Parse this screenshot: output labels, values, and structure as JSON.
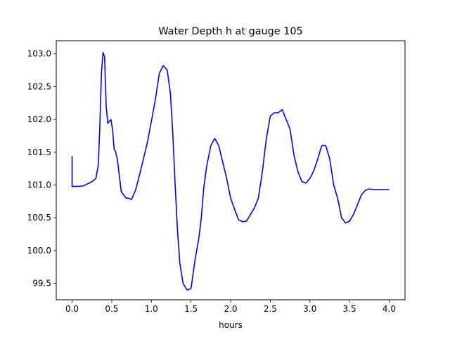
{
  "chart_data": {
    "type": "line",
    "title": "Water Depth h at gauge 105",
    "xlabel": "hours",
    "ylabel": "",
    "xlim": [
      -0.2,
      4.2
    ],
    "ylim": [
      99.25,
      103.2
    ],
    "xticks": [
      0.0,
      0.5,
      1.0,
      1.5,
      2.0,
      2.5,
      3.0,
      3.5,
      4.0
    ],
    "xtick_labels": [
      "0.0",
      "0.5",
      "1.0",
      "1.5",
      "2.0",
      "2.5",
      "3.0",
      "3.5",
      "4.0"
    ],
    "yticks": [
      99.5,
      100.0,
      100.5,
      101.0,
      101.5,
      102.0,
      102.5,
      103.0
    ],
    "ytick_labels": [
      "99.5",
      "100.0",
      "100.5",
      "101.0",
      "101.5",
      "102.0",
      "102.5",
      "103.0"
    ],
    "grid": false,
    "color": "#0000ff",
    "series": [
      {
        "x": [
          0.0,
          0.0,
          0.05,
          0.1,
          0.15,
          0.2,
          0.25,
          0.3,
          0.33,
          0.35,
          0.37,
          0.39,
          0.41,
          0.43,
          0.45,
          0.47,
          0.49,
          0.51,
          0.53,
          0.55,
          0.57,
          0.59,
          0.62,
          0.65,
          0.68,
          0.71,
          0.75,
          0.8,
          0.85,
          0.9,
          0.95,
          1.0,
          1.05,
          1.1,
          1.15,
          1.2,
          1.24,
          1.27,
          1.3,
          1.33,
          1.36,
          1.4,
          1.45,
          1.5,
          1.55,
          1.6,
          1.63,
          1.66,
          1.7,
          1.75,
          1.8,
          1.85,
          1.9,
          1.95,
          2.0,
          2.05,
          2.1,
          2.15,
          2.2,
          2.25,
          2.3,
          2.35,
          2.4,
          2.45,
          2.5,
          2.55,
          2.6,
          2.65,
          2.7,
          2.75,
          2.8,
          2.85,
          2.9,
          2.95,
          3.0,
          3.05,
          3.1,
          3.15,
          3.2,
          3.25,
          3.3,
          3.35,
          3.4,
          3.45,
          3.5,
          3.55,
          3.6,
          3.65,
          3.7,
          3.75,
          3.8,
          3.85,
          3.9,
          3.95,
          4.0
        ],
        "y": [
          101.44,
          100.98,
          100.98,
          100.98,
          100.99,
          101.02,
          101.05,
          101.1,
          101.3,
          101.9,
          102.7,
          103.02,
          102.95,
          102.2,
          101.94,
          101.97,
          102.0,
          101.85,
          101.55,
          101.5,
          101.4,
          101.2,
          100.9,
          100.85,
          100.8,
          100.8,
          100.78,
          100.92,
          101.15,
          101.4,
          101.65,
          101.97,
          102.3,
          102.7,
          102.82,
          102.75,
          102.4,
          101.8,
          101.0,
          100.3,
          99.8,
          99.5,
          99.4,
          99.42,
          99.85,
          100.2,
          100.5,
          100.95,
          101.3,
          101.6,
          101.71,
          101.6,
          101.35,
          101.1,
          100.8,
          100.63,
          100.47,
          100.44,
          100.45,
          100.55,
          100.65,
          100.8,
          101.2,
          101.7,
          102.05,
          102.1,
          102.1,
          102.15,
          102.0,
          101.85,
          101.45,
          101.2,
          101.05,
          101.03,
          101.1,
          101.22,
          101.4,
          101.6,
          101.6,
          101.4,
          101.0,
          100.8,
          100.5,
          100.42,
          100.45,
          100.55,
          100.7,
          100.85,
          100.92,
          100.94,
          100.93,
          100.93,
          100.93,
          100.93,
          100.93
        ]
      }
    ]
  }
}
